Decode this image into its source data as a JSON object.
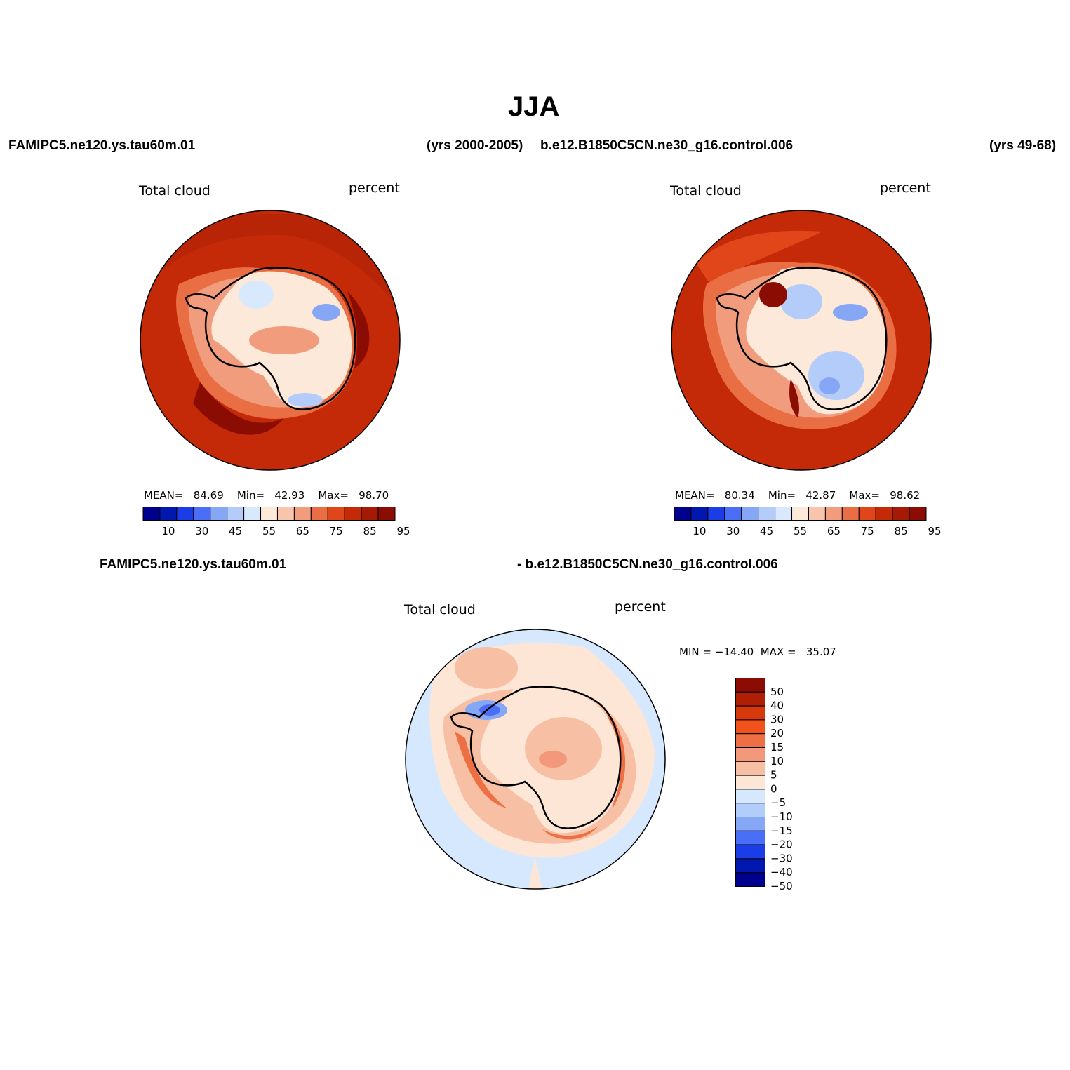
{
  "title": "JJA",
  "header": {
    "case1_name": "FAMIPC5.ne120.ys.tau60m.01",
    "case1_years": "(yrs 2000-2005)",
    "case2_name": "b.e12.B1850C5CN.ne30_g16.control.006",
    "case2_years": "(yrs 49-68)",
    "diff_left": "FAMIPC5.ne120.ys.tau60m.01",
    "diff_right": "- b.e12.B1850C5CN.ne30_g16.control.006"
  },
  "panels": [
    {
      "variable": "Total cloud",
      "units": "percent",
      "stats": {
        "mean_label": "MEAN=",
        "mean": "84.69",
        "min_label": "Min=",
        "min": "42.93",
        "max_label": "Max=",
        "max": "98.70"
      }
    },
    {
      "variable": "Total cloud",
      "units": "percent",
      "stats": {
        "mean_label": "MEAN=",
        "mean": "80.34",
        "min_label": "Min=",
        "min": "42.87",
        "max_label": "Max=",
        "max": "98.62"
      }
    },
    {
      "variable": "Total cloud",
      "units": "percent",
      "minmax": "MIN = −14.40  MAX =   35.07"
    }
  ],
  "colorbar_abs": {
    "tick_labels": [
      "10",
      "30",
      "45",
      "55",
      "65",
      "75",
      "85",
      "95"
    ],
    "colors": [
      "#00008f",
      "#0018b0",
      "#1a3de8",
      "#4a6ef5",
      "#86a6f6",
      "#b4ccfa",
      "#d8e8fd",
      "#fde9d9",
      "#f8c4ac",
      "#f19d7d",
      "#ea6e44",
      "#e0461a",
      "#c42a08",
      "#a51a04",
      "#8a0c02"
    ]
  },
  "colorbar_diff": {
    "tick_labels": [
      "50",
      "40",
      "30",
      "20",
      "15",
      "10",
      "5",
      "0",
      "−5",
      "−10",
      "−15",
      "−20",
      "−30",
      "−40",
      "−50"
    ],
    "colors": [
      "#8a0c02",
      "#b01f04",
      "#d63a0c",
      "#f2521c",
      "#ee6f44",
      "#f3987a",
      "#f7c0a5",
      "#fde6d6",
      "#d6e8fd",
      "#b2cdfa",
      "#86a6f6",
      "#4a6ef5",
      "#1a3de8",
      "#0018b0",
      "#00008f"
    ]
  },
  "colors": {
    "ocean_high": "#c42a08",
    "land_low": "#d8e8fd",
    "diff_neutral": "#d6e8fd"
  }
}
